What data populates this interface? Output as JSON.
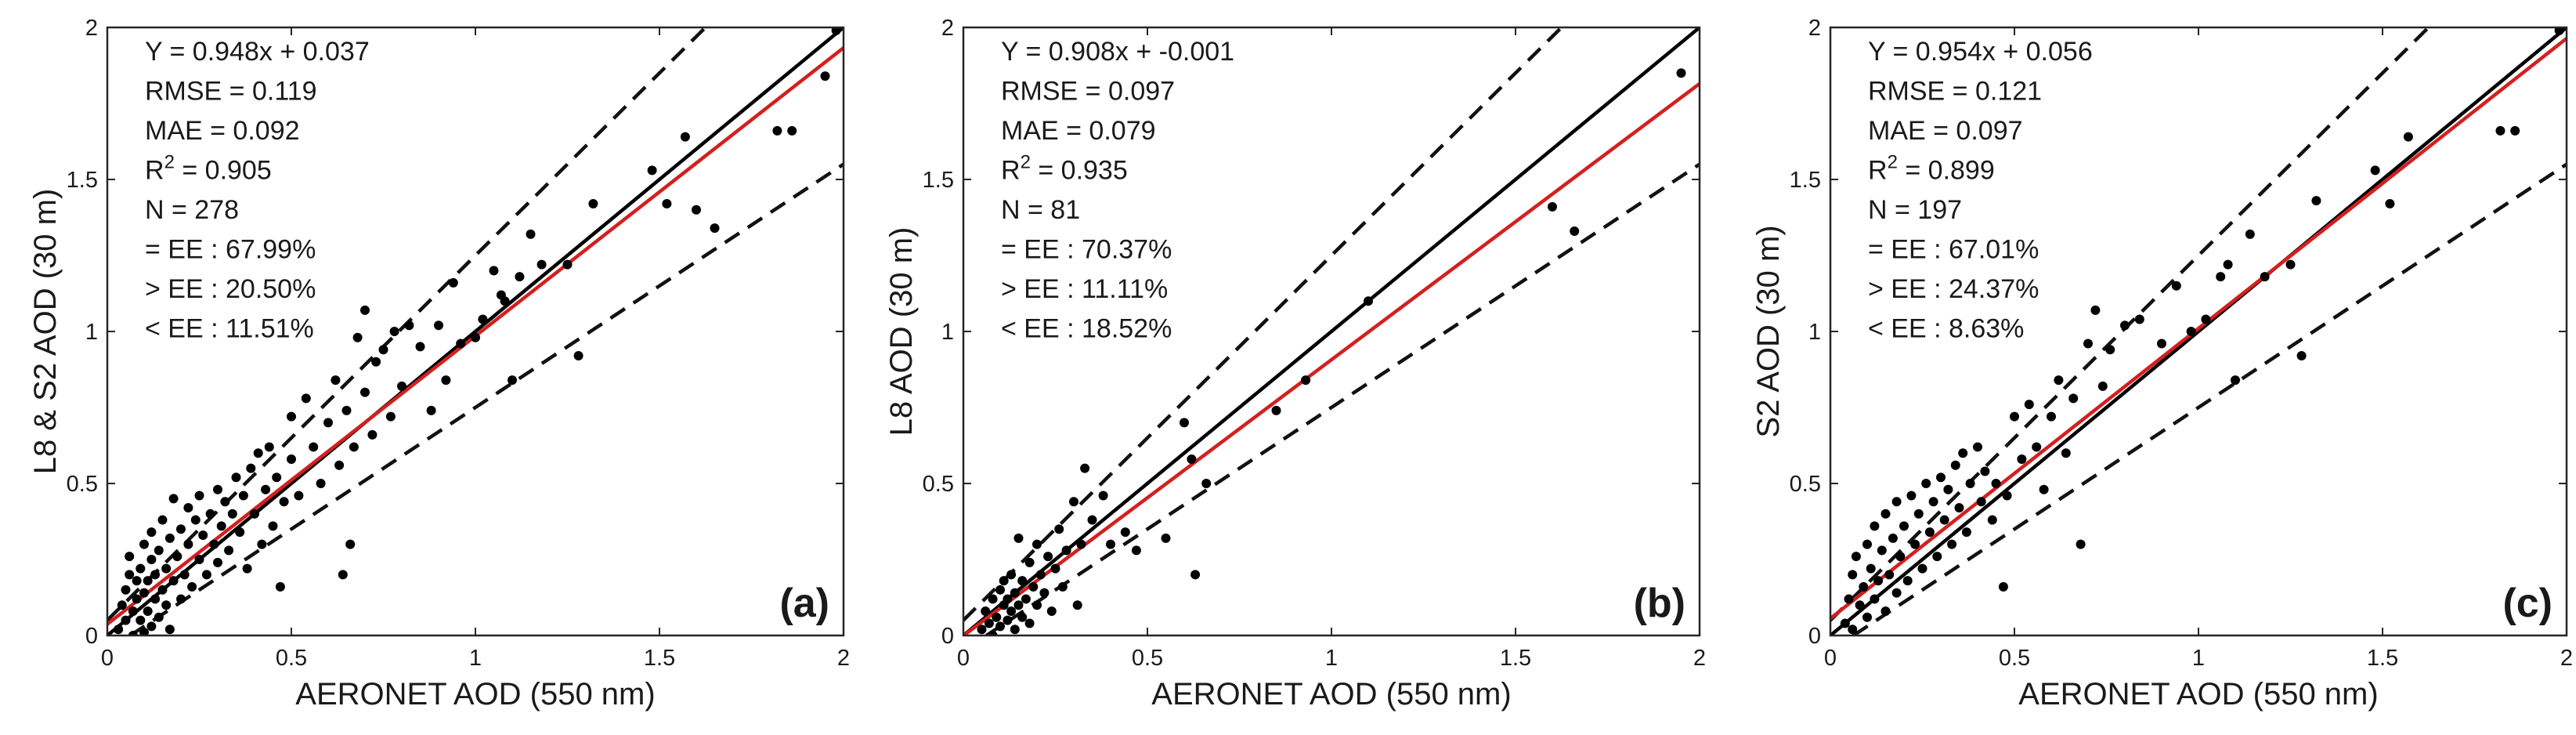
{
  "chart_data": [
    {
      "type": "scatter",
      "panel_label": "(a)",
      "xlabel": "AERONET AOD (550 nm)",
      "ylabel": "L8 & S2 AOD (30 m)",
      "xlim": [
        0,
        2
      ],
      "ylim": [
        0,
        2
      ],
      "xticks": [
        0,
        0.5,
        1,
        1.5,
        2
      ],
      "xtick_labels": [
        "0",
        "0.5",
        "1",
        "1.5",
        "2"
      ],
      "yticks": [
        0,
        0.5,
        1,
        1.5,
        2
      ],
      "ytick_labels": [
        "0",
        "0.5",
        "1",
        "1.5",
        "2"
      ],
      "stats": {
        "equation": "Y = 0.948x + 0.037",
        "rmse": "RMSE = 0.119",
        "mae": "MAE = 0.092",
        "r2_prefix": "R",
        "r2_sup": "2",
        "r2_value": " = 0.905",
        "n": "N = 278",
        "within_ee": "= EE : 67.99%",
        "above_ee": "> EE : 20.50%",
        "below_ee": "< EE : 11.51%"
      },
      "fit": {
        "slope": 0.948,
        "intercept": 0.037
      },
      "ee_offset": 0.05,
      "ee_ratio": 0.2,
      "points": [
        [
          0.03,
          0.02
        ],
        [
          0.04,
          0.1
        ],
        [
          0.05,
          0.05
        ],
        [
          0.05,
          0.15
        ],
        [
          0.06,
          0.2
        ],
        [
          0.06,
          0.26
        ],
        [
          0.07,
          0.0
        ],
        [
          0.07,
          0.08
        ],
        [
          0.08,
          0.12
        ],
        [
          0.08,
          0.18
        ],
        [
          0.09,
          0.05
        ],
        [
          0.09,
          0.22
        ],
        [
          0.1,
          0.01
        ],
        [
          0.1,
          0.14
        ],
        [
          0.1,
          0.3
        ],
        [
          0.11,
          0.08
        ],
        [
          0.11,
          0.18
        ],
        [
          0.12,
          0.03
        ],
        [
          0.12,
          0.25
        ],
        [
          0.12,
          0.34
        ],
        [
          0.13,
          0.12
        ],
        [
          0.13,
          0.2
        ],
        [
          0.14,
          0.06
        ],
        [
          0.14,
          0.28
        ],
        [
          0.15,
          0.15
        ],
        [
          0.15,
          0.38
        ],
        [
          0.16,
          0.1
        ],
        [
          0.16,
          0.22
        ],
        [
          0.17,
          0.32
        ],
        [
          0.17,
          0.02
        ],
        [
          0.18,
          0.18
        ],
        [
          0.18,
          0.45
        ],
        [
          0.19,
          0.26
        ],
        [
          0.2,
          0.12
        ],
        [
          0.2,
          0.35
        ],
        [
          0.21,
          0.2
        ],
        [
          0.22,
          0.3
        ],
        [
          0.22,
          0.42
        ],
        [
          0.23,
          0.16
        ],
        [
          0.24,
          0.38
        ],
        [
          0.25,
          0.25
        ],
        [
          0.25,
          0.46
        ],
        [
          0.26,
          0.33
        ],
        [
          0.27,
          0.2
        ],
        [
          0.28,
          0.4
        ],
        [
          0.29,
          0.3
        ],
        [
          0.3,
          0.48
        ],
        [
          0.3,
          0.24
        ],
        [
          0.31,
          0.36
        ],
        [
          0.32,
          0.44
        ],
        [
          0.33,
          0.28
        ],
        [
          0.34,
          0.4
        ],
        [
          0.35,
          0.52
        ],
        [
          0.36,
          0.34
        ],
        [
          0.37,
          0.46
        ],
        [
          0.38,
          0.22
        ],
        [
          0.39,
          0.55
        ],
        [
          0.4,
          0.4
        ],
        [
          0.41,
          0.6
        ],
        [
          0.42,
          0.3
        ],
        [
          0.43,
          0.48
        ],
        [
          0.44,
          0.62
        ],
        [
          0.45,
          0.36
        ],
        [
          0.46,
          0.52
        ],
        [
          0.47,
          0.16
        ],
        [
          0.48,
          0.44
        ],
        [
          0.5,
          0.58
        ],
        [
          0.5,
          0.72
        ],
        [
          0.52,
          0.46
        ],
        [
          0.54,
          0.78
        ],
        [
          0.56,
          0.62
        ],
        [
          0.58,
          0.5
        ],
        [
          0.6,
          0.7
        ],
        [
          0.62,
          0.84
        ],
        [
          0.63,
          0.56
        ],
        [
          0.64,
          0.2
        ],
        [
          0.65,
          0.74
        ],
        [
          0.66,
          0.3
        ],
        [
          0.67,
          0.62
        ],
        [
          0.68,
          0.98
        ],
        [
          0.7,
          0.8
        ],
        [
          0.7,
          1.07
        ],
        [
          0.72,
          0.66
        ],
        [
          0.73,
          0.9
        ],
        [
          0.75,
          0.94
        ],
        [
          0.77,
          0.72
        ],
        [
          0.78,
          1.0
        ],
        [
          0.8,
          0.82
        ],
        [
          0.82,
          1.02
        ],
        [
          0.85,
          0.95
        ],
        [
          0.88,
          0.74
        ],
        [
          0.9,
          1.02
        ],
        [
          0.92,
          0.84
        ],
        [
          0.94,
          1.16
        ],
        [
          0.96,
          0.96
        ],
        [
          1.0,
          0.98
        ],
        [
          1.02,
          1.04
        ],
        [
          1.05,
          1.2
        ],
        [
          1.07,
          1.12
        ],
        [
          1.08,
          1.1
        ],
        [
          1.1,
          0.84
        ],
        [
          1.12,
          1.18
        ],
        [
          1.15,
          1.32
        ],
        [
          1.18,
          1.22
        ],
        [
          1.25,
          1.22
        ],
        [
          1.28,
          0.92
        ],
        [
          1.32,
          1.42
        ],
        [
          1.48,
          1.53
        ],
        [
          1.52,
          1.42
        ],
        [
          1.57,
          1.64
        ],
        [
          1.6,
          1.4
        ],
        [
          1.65,
          1.34
        ],
        [
          1.82,
          1.66
        ],
        [
          1.86,
          1.66
        ],
        [
          1.95,
          1.84
        ],
        [
          1.98,
          1.99
        ]
      ]
    },
    {
      "type": "scatter",
      "panel_label": "(b)",
      "xlabel": "AERONET AOD (550 nm)",
      "ylabel": "L8 AOD (30 m)",
      "xlim": [
        0,
        2
      ],
      "ylim": [
        0,
        2
      ],
      "xticks": [
        0,
        0.5,
        1,
        1.5,
        2
      ],
      "xtick_labels": [
        "0",
        "0.5",
        "1",
        "1.5",
        "2"
      ],
      "yticks": [
        0,
        0.5,
        1,
        1.5,
        2
      ],
      "ytick_labels": [
        "0",
        "0.5",
        "1",
        "1.5",
        "2"
      ],
      "stats": {
        "equation": "Y = 0.908x + -0.001",
        "rmse": "RMSE = 0.097",
        "mae": "MAE = 0.079",
        "r2_prefix": "R",
        "r2_sup": "2",
        "r2_value": " = 0.935",
        "n": "N = 81",
        "within_ee": "= EE : 70.37%",
        "above_ee": "> EE : 11.11%",
        "below_ee": "< EE : 18.52%"
      },
      "fit": {
        "slope": 0.908,
        "intercept": -0.001
      },
      "ee_offset": 0.05,
      "ee_ratio": 0.2,
      "points": [
        [
          0.05,
          0.02
        ],
        [
          0.06,
          0.08
        ],
        [
          0.07,
          0.04
        ],
        [
          0.08,
          0.12
        ],
        [
          0.08,
          0.0
        ],
        [
          0.09,
          0.06
        ],
        [
          0.1,
          0.15
        ],
        [
          0.1,
          0.03
        ],
        [
          0.11,
          0.1
        ],
        [
          0.11,
          0.18
        ],
        [
          0.12,
          0.05
        ],
        [
          0.12,
          0.12
        ],
        [
          0.13,
          0.08
        ],
        [
          0.13,
          0.2
        ],
        [
          0.14,
          0.02
        ],
        [
          0.14,
          0.14
        ],
        [
          0.15,
          0.1
        ],
        [
          0.15,
          0.32
        ],
        [
          0.16,
          0.06
        ],
        [
          0.16,
          0.18
        ],
        [
          0.17,
          0.12
        ],
        [
          0.18,
          0.24
        ],
        [
          0.18,
          0.04
        ],
        [
          0.19,
          0.16
        ],
        [
          0.2,
          0.1
        ],
        [
          0.2,
          0.3
        ],
        [
          0.21,
          0.2
        ],
        [
          0.22,
          0.14
        ],
        [
          0.23,
          0.26
        ],
        [
          0.24,
          0.08
        ],
        [
          0.25,
          0.22
        ],
        [
          0.26,
          0.35
        ],
        [
          0.27,
          0.16
        ],
        [
          0.28,
          0.28
        ],
        [
          0.3,
          0.44
        ],
        [
          0.31,
          0.1
        ],
        [
          0.32,
          0.3
        ],
        [
          0.33,
          0.55
        ],
        [
          0.35,
          0.38
        ],
        [
          0.38,
          0.46
        ],
        [
          0.4,
          0.3
        ],
        [
          0.44,
          0.34
        ],
        [
          0.47,
          0.28
        ],
        [
          0.55,
          0.32
        ],
        [
          0.6,
          0.7
        ],
        [
          0.62,
          0.58
        ],
        [
          0.63,
          0.2
        ],
        [
          0.66,
          0.5
        ],
        [
          0.85,
          0.74
        ],
        [
          0.93,
          0.84
        ],
        [
          1.1,
          1.1
        ],
        [
          1.6,
          1.41
        ],
        [
          1.66,
          1.33
        ],
        [
          1.95,
          1.85
        ]
      ]
    },
    {
      "type": "scatter",
      "panel_label": "(c)",
      "xlabel": "AERONET AOD (550 nm)",
      "ylabel": "S2 AOD (30 m)",
      "xlim": [
        0,
        2
      ],
      "ylim": [
        0,
        2
      ],
      "xticks": [
        0,
        0.5,
        1,
        1.5,
        2
      ],
      "xtick_labels": [
        "0",
        "0.5",
        "1",
        "1.5",
        "2"
      ],
      "yticks": [
        0,
        0.5,
        1,
        1.5,
        2
      ],
      "ytick_labels": [
        "0",
        "0.5",
        "1",
        "1.5",
        "2"
      ],
      "stats": {
        "equation": "Y = 0.954x + 0.056",
        "rmse": "RMSE = 0.121",
        "mae": "MAE = 0.097",
        "r2_prefix": "R",
        "r2_sup": "2",
        "r2_value": " = 0.899",
        "n": "N = 197",
        "within_ee": "= EE : 67.01%",
        "above_ee": "> EE : 24.37%",
        "below_ee": "< EE : 8.63%"
      },
      "fit": {
        "slope": 0.954,
        "intercept": 0.056
      },
      "ee_offset": 0.05,
      "ee_ratio": 0.2,
      "points": [
        [
          0.04,
          0.04
        ],
        [
          0.05,
          0.12
        ],
        [
          0.06,
          0.2
        ],
        [
          0.06,
          0.02
        ],
        [
          0.07,
          0.26
        ],
        [
          0.08,
          0.1
        ],
        [
          0.09,
          0.16
        ],
        [
          0.1,
          0.3
        ],
        [
          0.1,
          0.06
        ],
        [
          0.11,
          0.22
        ],
        [
          0.12,
          0.12
        ],
        [
          0.12,
          0.36
        ],
        [
          0.13,
          0.18
        ],
        [
          0.14,
          0.28
        ],
        [
          0.15,
          0.08
        ],
        [
          0.15,
          0.4
        ],
        [
          0.16,
          0.2
        ],
        [
          0.17,
          0.32
        ],
        [
          0.18,
          0.14
        ],
        [
          0.18,
          0.44
        ],
        [
          0.19,
          0.26
        ],
        [
          0.2,
          0.36
        ],
        [
          0.21,
          0.18
        ],
        [
          0.22,
          0.46
        ],
        [
          0.23,
          0.3
        ],
        [
          0.24,
          0.4
        ],
        [
          0.25,
          0.22
        ],
        [
          0.26,
          0.5
        ],
        [
          0.27,
          0.34
        ],
        [
          0.28,
          0.44
        ],
        [
          0.29,
          0.26
        ],
        [
          0.3,
          0.52
        ],
        [
          0.31,
          0.38
        ],
        [
          0.32,
          0.48
        ],
        [
          0.33,
          0.3
        ],
        [
          0.34,
          0.56
        ],
        [
          0.35,
          0.42
        ],
        [
          0.36,
          0.6
        ],
        [
          0.37,
          0.34
        ],
        [
          0.38,
          0.5
        ],
        [
          0.4,
          0.62
        ],
        [
          0.41,
          0.44
        ],
        [
          0.42,
          0.54
        ],
        [
          0.44,
          0.38
        ],
        [
          0.45,
          0.5
        ],
        [
          0.47,
          0.16
        ],
        [
          0.48,
          0.46
        ],
        [
          0.5,
          0.72
        ],
        [
          0.52,
          0.58
        ],
        [
          0.54,
          0.76
        ],
        [
          0.56,
          0.62
        ],
        [
          0.58,
          0.48
        ],
        [
          0.6,
          0.72
        ],
        [
          0.62,
          0.84
        ],
        [
          0.64,
          0.6
        ],
        [
          0.66,
          0.78
        ],
        [
          0.68,
          0.3
        ],
        [
          0.7,
          0.96
        ],
        [
          0.72,
          1.07
        ],
        [
          0.74,
          0.82
        ],
        [
          0.76,
          0.94
        ],
        [
          0.8,
          1.02
        ],
        [
          0.84,
          1.04
        ],
        [
          0.9,
          0.96
        ],
        [
          0.94,
          1.15
        ],
        [
          0.98,
          1.0
        ],
        [
          1.02,
          1.04
        ],
        [
          1.06,
          1.18
        ],
        [
          1.08,
          1.22
        ],
        [
          1.1,
          0.84
        ],
        [
          1.14,
          1.32
        ],
        [
          1.18,
          1.18
        ],
        [
          1.25,
          1.22
        ],
        [
          1.28,
          0.92
        ],
        [
          1.32,
          1.43
        ],
        [
          1.48,
          1.53
        ],
        [
          1.52,
          1.42
        ],
        [
          1.57,
          1.64
        ],
        [
          1.82,
          1.66
        ],
        [
          1.86,
          1.66
        ],
        [
          1.98,
          1.99
        ]
      ]
    }
  ]
}
